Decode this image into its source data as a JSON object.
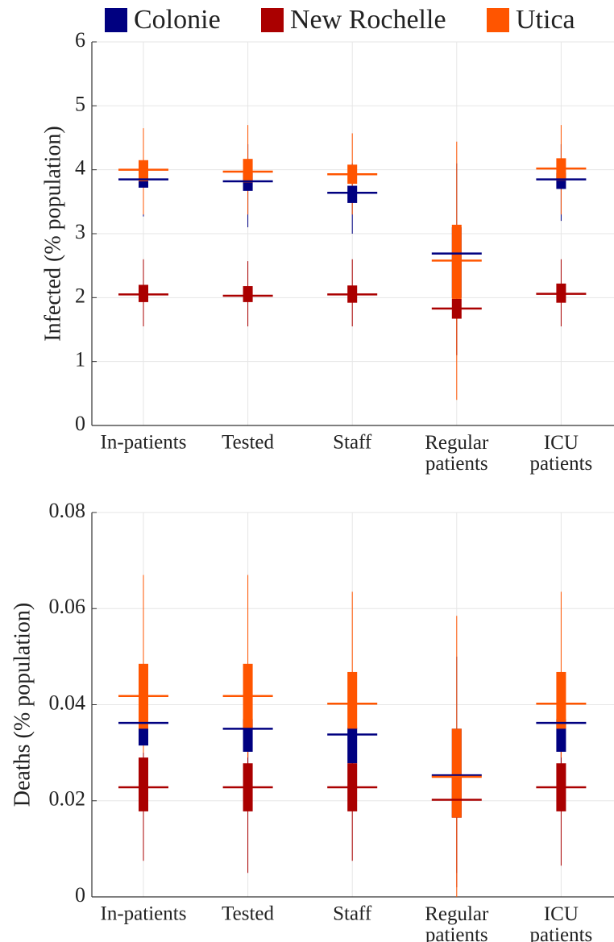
{
  "chart_data": [
    {
      "type": "box",
      "ylabel": "Infected (% population)",
      "categories": [
        "In-patients",
        "Tested",
        "Staff",
        "Regular patients",
        "ICU patients"
      ],
      "ylim": [
        0,
        6
      ],
      "yticks": [
        0,
        1,
        2,
        3,
        4,
        5,
        6
      ],
      "grid": true,
      "series": [
        {
          "name": "Colonie",
          "color": "#000080",
          "values": [
            {
              "median": 3.85,
              "q1": 3.72,
              "q3": 4.0,
              "whisker_low": 3.27,
              "whisker_high": 4.4
            },
            {
              "median": 3.82,
              "q1": 3.67,
              "q3": 3.95,
              "whisker_low": 3.1,
              "whisker_high": 4.4
            },
            {
              "median": 3.64,
              "q1": 3.48,
              "q3": 3.75,
              "whisker_low": 3.0,
              "whisker_high": 4.1
            },
            {
              "median": 2.69,
              "q1": 2.0,
              "q3": 3.1,
              "whisker_low": 1.1,
              "whisker_high": 4.1
            },
            {
              "median": 3.85,
              "q1": 3.7,
              "q3": 3.95,
              "whisker_low": 3.2,
              "whisker_high": 4.4
            }
          ]
        },
        {
          "name": "New Rochelle",
          "color": "#aa0000",
          "values": [
            {
              "median": 2.05,
              "q1": 1.93,
              "q3": 2.2,
              "whisker_low": 1.55,
              "whisker_high": 2.6
            },
            {
              "median": 2.03,
              "q1": 1.93,
              "q3": 2.18,
              "whisker_low": 1.55,
              "whisker_high": 2.57
            },
            {
              "median": 2.05,
              "q1": 1.92,
              "q3": 2.19,
              "whisker_low": 1.55,
              "whisker_high": 2.6
            },
            {
              "median": 1.83,
              "q1": 1.67,
              "q3": 1.98,
              "whisker_low": 1.1,
              "whisker_high": 2.6
            },
            {
              "median": 2.06,
              "q1": 1.92,
              "q3": 2.22,
              "whisker_low": 1.55,
              "whisker_high": 2.6
            }
          ]
        },
        {
          "name": "Utica",
          "color": "#ff5500",
          "values": [
            {
              "median": 4.0,
              "q1": 3.82,
              "q3": 4.15,
              "whisker_low": 3.3,
              "whisker_high": 4.65
            },
            {
              "median": 3.97,
              "q1": 3.8,
              "q3": 4.17,
              "whisker_low": 3.3,
              "whisker_high": 4.7
            },
            {
              "median": 3.93,
              "q1": 3.78,
              "q3": 4.08,
              "whisker_low": 3.3,
              "whisker_high": 4.57
            },
            {
              "median": 2.58,
              "q1": 1.98,
              "q3": 3.14,
              "whisker_low": 0.4,
              "whisker_high": 4.44
            },
            {
              "median": 4.02,
              "q1": 3.83,
              "q3": 4.18,
              "whisker_low": 3.3,
              "whisker_high": 4.7
            }
          ]
        }
      ]
    },
    {
      "type": "box",
      "ylabel": "Deaths (% population)",
      "categories": [
        "In-patients",
        "Tested",
        "Staff",
        "Regular patients",
        "ICU patients"
      ],
      "ylim": [
        0,
        0.08
      ],
      "yticks": [
        0,
        0.02,
        0.04,
        0.06,
        0.08
      ],
      "grid": true,
      "series": [
        {
          "color": "#000080",
          "values": [
            {
              "median": 0.0362,
              "q1": 0.0315,
              "q3": 0.037,
              "whisker_low": 0.025,
              "whisker_high": 0.045
            },
            {
              "median": 0.035,
              "q1": 0.0302,
              "q3": 0.037,
              "whisker_low": 0.024,
              "whisker_high": 0.045
            },
            {
              "median": 0.0338,
              "q1": 0.0278,
              "q3": 0.0352,
              "whisker_low": 0.022,
              "whisker_high": 0.044
            },
            {
              "median": 0.0253,
              "q1": 0.0165,
              "q3": 0.035,
              "whisker_low": 0.005,
              "whisker_high": 0.05
            },
            {
              "median": 0.0362,
              "q1": 0.0302,
              "q3": 0.037,
              "whisker_low": 0.024,
              "whisker_high": 0.045
            }
          ]
        },
        {
          "color": "#aa0000",
          "values": [
            {
              "median": 0.0228,
              "q1": 0.0178,
              "q3": 0.029,
              "whisker_low": 0.0075,
              "whisker_high": 0.04
            },
            {
              "median": 0.0228,
              "q1": 0.0178,
              "q3": 0.0278,
              "whisker_low": 0.005,
              "whisker_high": 0.04
            },
            {
              "median": 0.0228,
              "q1": 0.0178,
              "q3": 0.0278,
              "whisker_low": 0.0075,
              "whisker_high": 0.038
            },
            {
              "median": 0.0202,
              "q1": 0.0165,
              "q3": 0.025,
              "whisker_low": 0.002,
              "whisker_high": 0.035
            },
            {
              "median": 0.0228,
              "q1": 0.0178,
              "q3": 0.0278,
              "whisker_low": 0.0065,
              "whisker_high": 0.038
            }
          ]
        },
        {
          "color": "#ff5500",
          "values": [
            {
              "median": 0.0418,
              "q1": 0.035,
              "q3": 0.0485,
              "whisker_low": 0.03,
              "whisker_high": 0.067
            },
            {
              "median": 0.0418,
              "q1": 0.035,
              "q3": 0.0485,
              "whisker_low": 0.029,
              "whisker_high": 0.067
            },
            {
              "median": 0.0402,
              "q1": 0.035,
              "q3": 0.0468,
              "whisker_low": 0.028,
              "whisker_high": 0.0635
            },
            {
              "median": 0.025,
              "q1": 0.0165,
              "q3": 0.035,
              "whisker_low": 0,
              "whisker_high": 0.0585
            },
            {
              "median": 0.0402,
              "q1": 0.035,
              "q3": 0.0468,
              "whisker_low": 0.029,
              "whisker_high": 0.0635
            }
          ]
        }
      ]
    }
  ]
}
